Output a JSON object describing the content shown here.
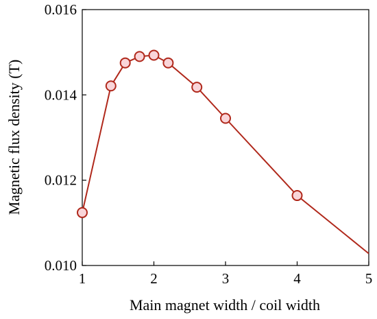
{
  "chart_data": {
    "type": "line",
    "title": "",
    "xlabel": "Main magnet width / coil width",
    "ylabel": "Magnetic flux density (T)",
    "xlim": [
      1,
      5
    ],
    "ylim": [
      0.01,
      0.016
    ],
    "xticks": [
      1,
      2,
      3,
      4,
      5
    ],
    "xtick_labels": [
      "1",
      "2",
      "3",
      "4",
      "5"
    ],
    "yticks": [
      0.01,
      0.012,
      0.014,
      0.016
    ],
    "ytick_labels": [
      "0.010",
      "0.012",
      "0.014",
      "0.016"
    ],
    "grid": false,
    "legend": "none",
    "series": [
      {
        "color": "#b0281b",
        "marker_fill": "#f9d5d9",
        "x": [
          1.0,
          1.4,
          1.6,
          1.8,
          2.0,
          2.2,
          2.6,
          3.0,
          4.0,
          5.0
        ],
        "y": [
          0.01124,
          0.01421,
          0.01475,
          0.0149,
          0.01493,
          0.01475,
          0.01418,
          0.01345,
          0.01164,
          0.01028
        ],
        "markers": [
          true,
          true,
          true,
          true,
          true,
          true,
          true,
          true,
          true,
          false
        ]
      }
    ]
  }
}
